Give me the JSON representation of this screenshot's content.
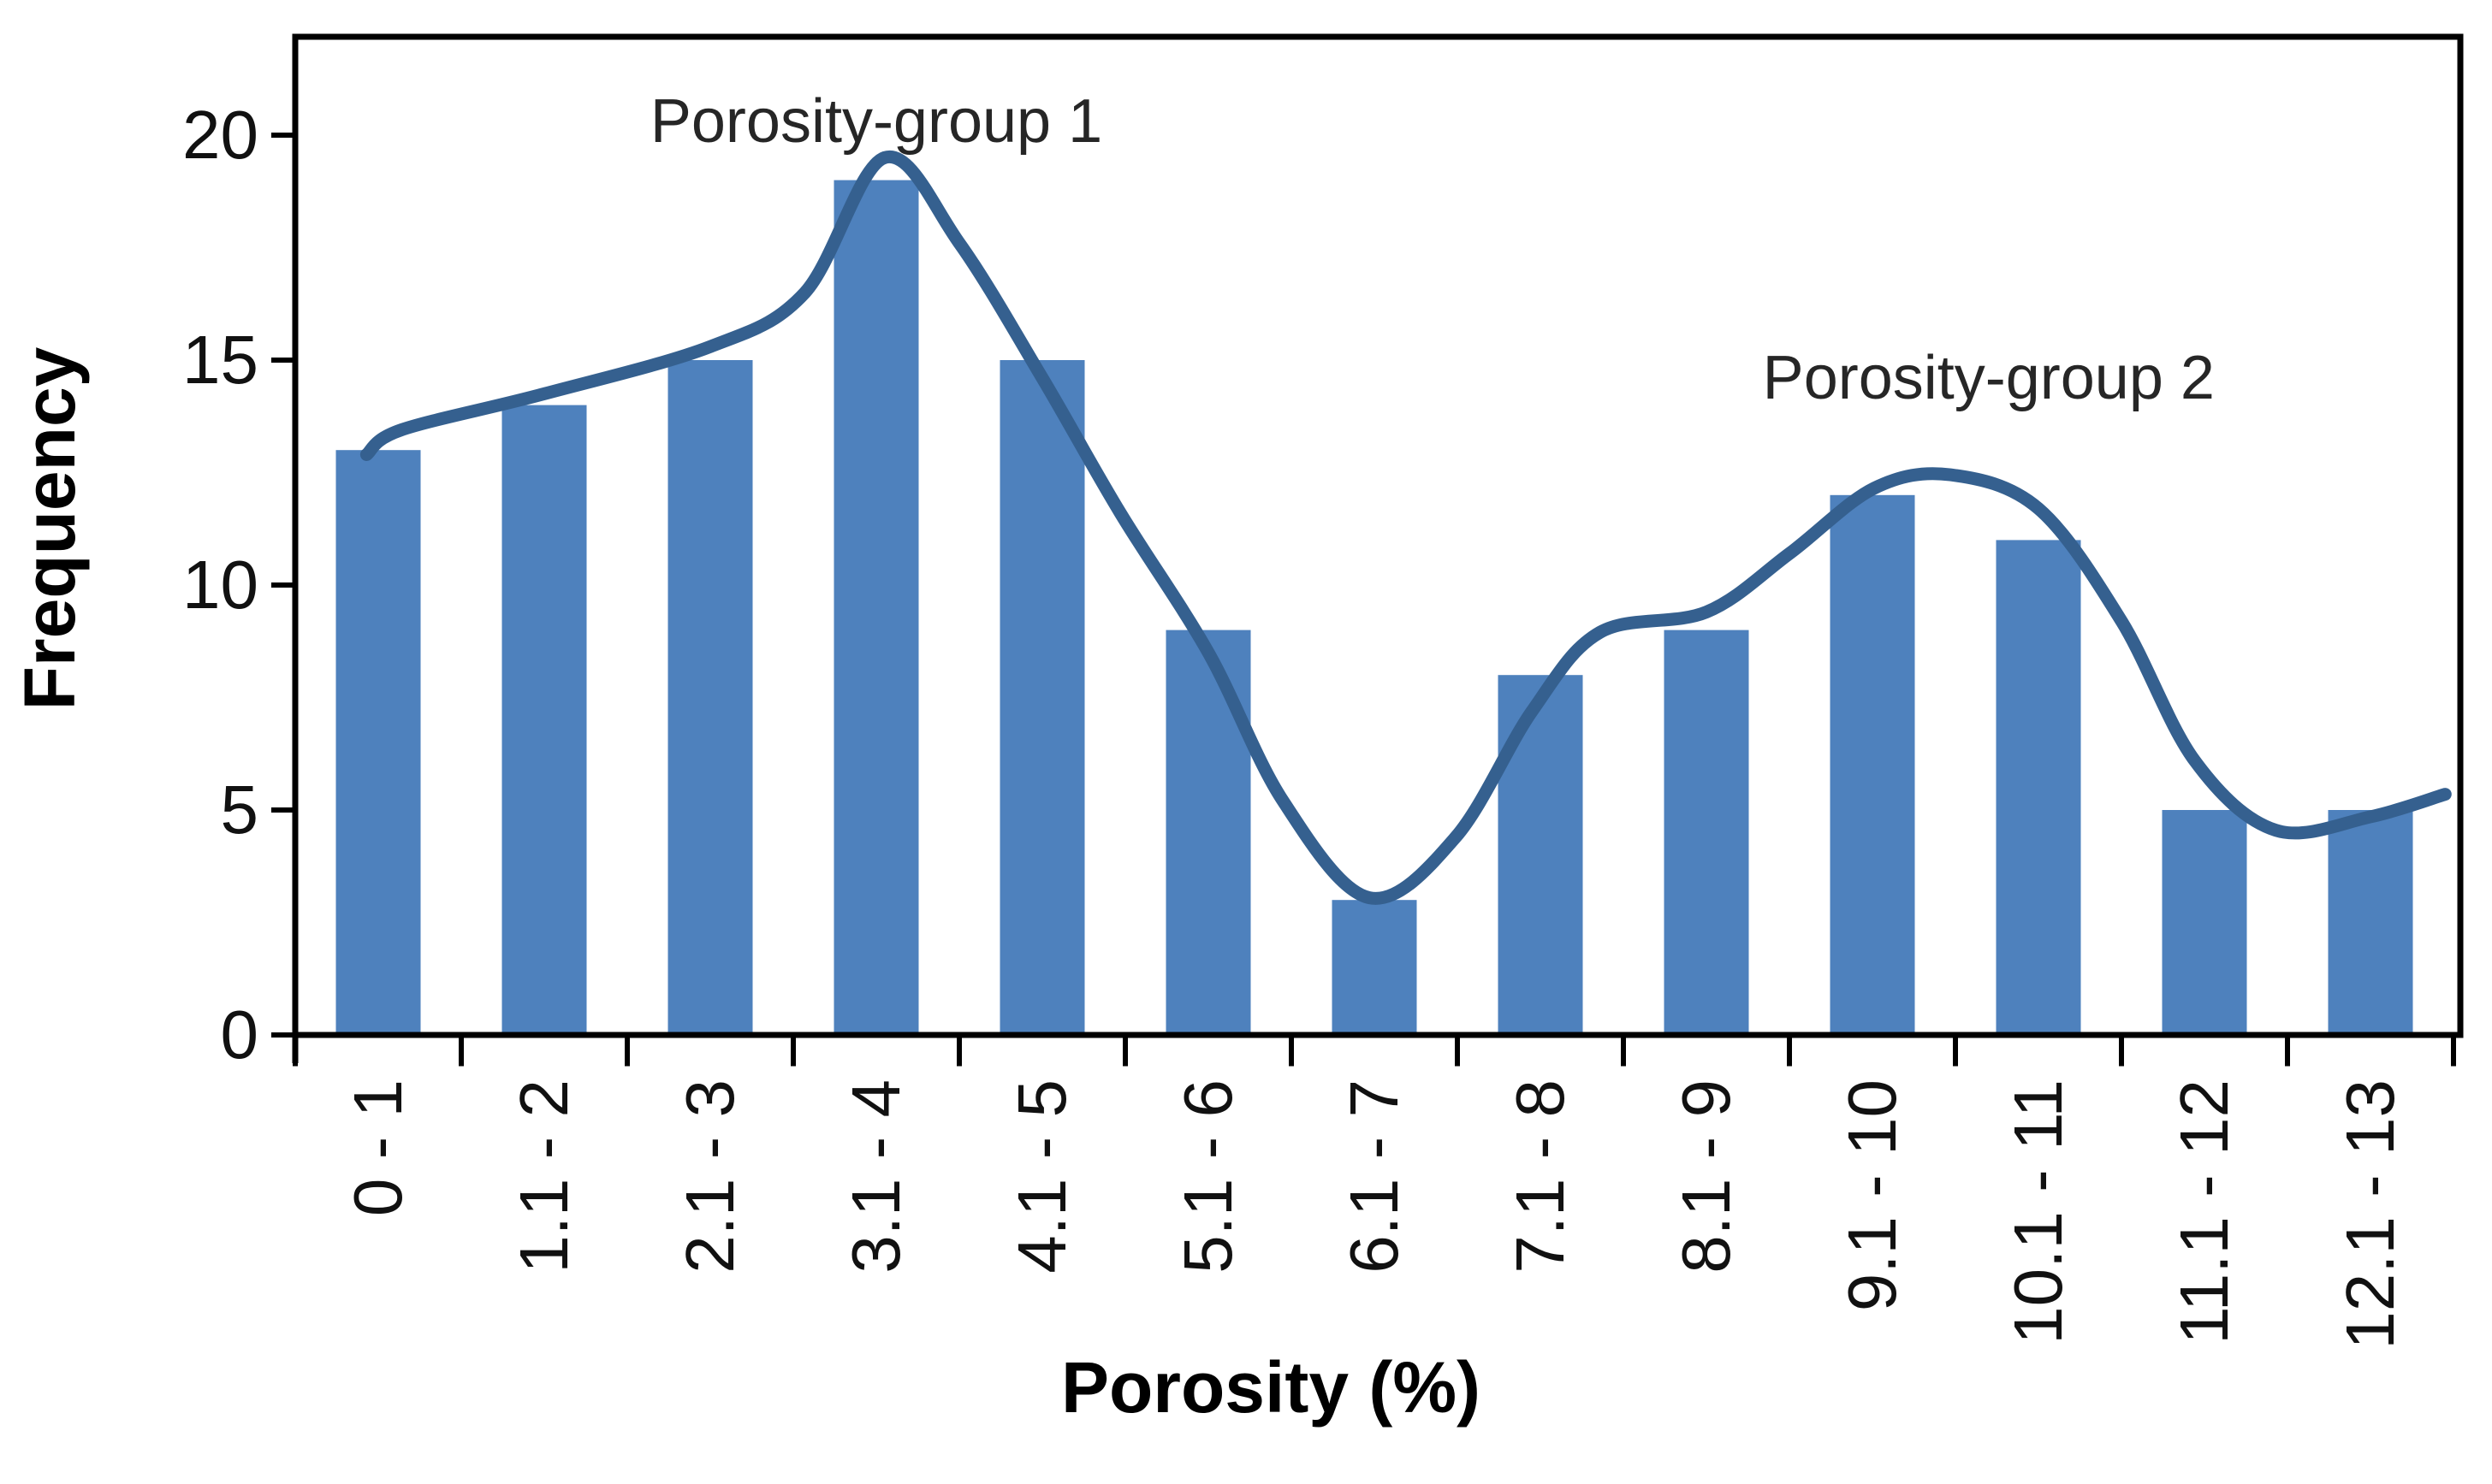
{
  "chart_data": {
    "type": "bar",
    "title": "",
    "categories": [
      "0 - 1",
      "1.1 - 2",
      "2.1 - 3",
      "3.1 - 4",
      "4.1 - 5",
      "5.1 - 6",
      "6.1 - 7",
      "7.1 - 8",
      "8.1 - 9",
      "9.1 - 10",
      "10.1 - 11",
      "11.1 - 12",
      "12.1 - 13"
    ],
    "values": [
      13,
      14,
      15,
      19,
      15,
      9,
      3,
      8,
      9,
      12,
      11,
      5,
      5
    ],
    "xlabel": "Porosity (%)",
    "ylabel": "Frequency",
    "ylim": [
      0,
      22.2
    ],
    "yticks": [
      0,
      5,
      10,
      15,
      20
    ],
    "grid": false,
    "legend": "none",
    "bar_color": "#4E81BD",
    "curve_color": "#35608F",
    "axis_color": "#000000",
    "label_color": "#111111",
    "annotation_color": "#262626",
    "annotations": [
      {
        "text": "Porosity-group 1",
        "x_index": 3.0,
        "y_value": 20.3
      },
      {
        "text": "Porosity-group 2",
        "x_index": 9.7,
        "y_value": 14.6
      }
    ],
    "smoothed_curve_points": [
      [
        -0.07,
        12.9
      ],
      [
        0.14,
        13.45
      ],
      [
        1.0,
        14.25
      ],
      [
        2.0,
        15.3
      ],
      [
        2.57,
        16.5
      ],
      [
        3.05,
        19.5
      ],
      [
        3.5,
        17.6
      ],
      [
        4.0,
        14.6
      ],
      [
        4.47,
        11.6
      ],
      [
        5.0,
        8.5
      ],
      [
        5.45,
        5.2
      ],
      [
        5.97,
        3.05
      ],
      [
        6.49,
        4.4
      ],
      [
        6.95,
        7.2
      ],
      [
        7.36,
        8.95
      ],
      [
        8.0,
        9.4
      ],
      [
        8.5,
        10.7
      ],
      [
        9.01,
        12.15
      ],
      [
        9.47,
        12.45
      ],
      [
        10.0,
        11.7
      ],
      [
        10.5,
        9.2
      ],
      [
        10.94,
        6.1
      ],
      [
        11.43,
        4.55
      ],
      [
        12.0,
        4.85
      ],
      [
        12.45,
        5.35
      ]
    ]
  }
}
